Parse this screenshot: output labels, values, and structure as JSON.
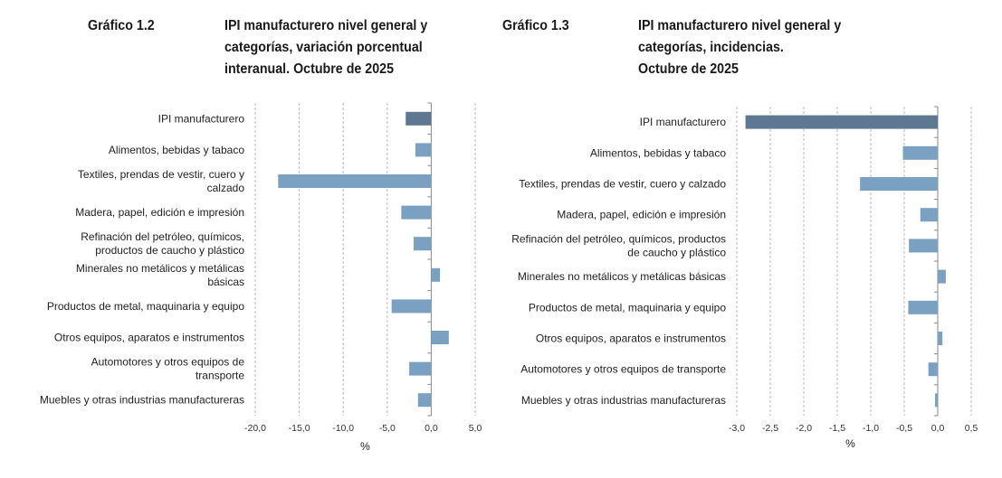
{
  "colors": {
    "bar_total": "#5f7891",
    "bar": "#7aa0c2",
    "grid": "#bbbbbb",
    "axis": "#888888"
  },
  "chart_data": [
    {
      "type": "bar",
      "orientation": "horizontal",
      "label": "Gráfico 1.2",
      "title": "IPI manufacturero nivel general y categorías, variación porcentual interanual. Octubre de 2025",
      "title_lines": [
        "IPI manufacturero nivel general y",
        "categorías, variación porcentual",
        "interanual. Octubre de 2025"
      ],
      "categories": [
        [
          "IPI manufacturero"
        ],
        [
          "Alimentos, bebidas y tabaco"
        ],
        [
          "Textiles, prendas de vestir, cuero y",
          "calzado"
        ],
        [
          "Madera, papel, edición e impresión"
        ],
        [
          "Refinación del petróleo, químicos,",
          "productos de caucho y plástico"
        ],
        [
          "Minerales no metálicos y metálicas",
          "básicas"
        ],
        [
          "Productos de metal, maquinaria y equipo"
        ],
        [
          "Otros equipos, aparatos e instrumentos"
        ],
        [
          "Automotores y otros equipos de",
          "transporte"
        ],
        [
          "Muebles y otras industrias manufactureras"
        ]
      ],
      "values": [
        -2.9,
        -1.8,
        -17.4,
        -3.4,
        -2.0,
        1.0,
        -4.5,
        2.0,
        -2.5,
        -1.5
      ],
      "xlim": [
        -20,
        5
      ],
      "xticks": [
        -20,
        -15,
        -10,
        -5,
        0,
        5
      ],
      "xtick_labels": [
        "-20,0",
        "-15,0",
        "-10,0",
        "-5,0",
        "0,0",
        "5,0"
      ],
      "xlabel": "%",
      "grid": true
    },
    {
      "type": "bar",
      "orientation": "horizontal",
      "label": "Gráfico 1.3",
      "title": "IPI manufacturero nivel general y categorías, incidencias. Octubre de 2025",
      "title_lines": [
        "IPI manufacturero nivel general y",
        "categorías, incidencias.",
        "Octubre de 2025"
      ],
      "categories": [
        [
          "IPI manufacturero"
        ],
        [
          "Alimentos, bebidas y tabaco"
        ],
        [
          "Textiles, prendas de vestir, cuero y calzado"
        ],
        [
          "Madera, papel, edición e impresión"
        ],
        [
          "Refinación del petróleo, químicos, productos",
          "de caucho y plástico"
        ],
        [
          "Minerales no metálicos y metálicas básicas"
        ],
        [
          "Productos de metal, maquinaria y equipo"
        ],
        [
          "Otros equipos, aparatos e instrumentos"
        ],
        [
          "Automotores y otros equipos de transporte"
        ],
        [
          "Muebles y otras industrias manufactureras"
        ]
      ],
      "values": [
        -2.87,
        -0.52,
        -1.16,
        -0.26,
        -0.43,
        0.12,
        -0.44,
        0.07,
        -0.14,
        -0.04
      ],
      "xlim": [
        -3,
        0.5
      ],
      "xticks": [
        -3,
        -2.5,
        -2,
        -1.5,
        -1,
        -0.5,
        0,
        0.5
      ],
      "xtick_labels": [
        "-3,0",
        "-2,5",
        "-2,0",
        "-1,5",
        "-1,0",
        "-0,5",
        "0,0",
        "0,5"
      ],
      "xlabel": "%",
      "grid": true
    }
  ]
}
